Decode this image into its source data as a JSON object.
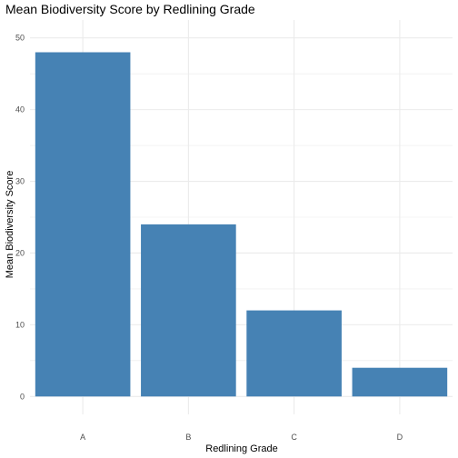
{
  "chart_data": {
    "type": "bar",
    "title": "Mean Biodiversity Score by Redlining Grade",
    "xlabel": "Redlining Grade",
    "ylabel": "Mean Biodiversity Score",
    "categories": [
      "A",
      "B",
      "C",
      "D"
    ],
    "values": [
      48,
      24,
      12,
      4
    ],
    "ylim": [
      0,
      50
    ],
    "yticks": [
      0,
      10,
      20,
      30,
      40,
      50
    ],
    "grid": true,
    "bar_color": "#4682B4",
    "grid_color": "#ebebeb"
  }
}
